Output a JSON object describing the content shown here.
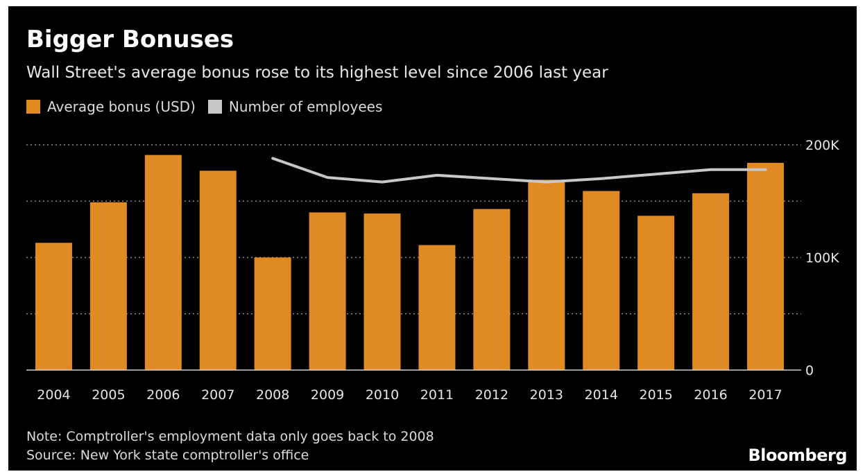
{
  "header": {
    "title": "Bigger Bonuses",
    "subtitle": "Wall Street's average bonus rose to its highest level since 2006 last year"
  },
  "legend": {
    "items": [
      {
        "label": "Average bonus (USD)",
        "color": "#e08a23"
      },
      {
        "label": "Number of employees",
        "color": "#c8c8c8"
      }
    ]
  },
  "footer": {
    "note": "Note: Comptroller's employment data only goes back to 2008",
    "source": "Source: New York state comptroller's office",
    "brand": "Bloomberg"
  },
  "chart_data": {
    "type": "bar",
    "categories": [
      "2004",
      "2005",
      "2006",
      "2007",
      "2008",
      "2009",
      "2010",
      "2011",
      "2012",
      "2013",
      "2014",
      "2015",
      "2016",
      "2017"
    ],
    "series": [
      {
        "name": "Average bonus (USD)",
        "type": "bar",
        "color": "#e08a23",
        "values": [
          113000,
          149000,
          191000,
          177000,
          100000,
          140000,
          139000,
          111000,
          143000,
          169000,
          159000,
          137000,
          157000,
          184000
        ]
      },
      {
        "name": "Number of employees",
        "type": "line",
        "color": "#c8c8c8",
        "values": [
          null,
          null,
          null,
          null,
          188000,
          171000,
          167000,
          173000,
          170000,
          167000,
          170000,
          174000,
          178000,
          178000
        ]
      }
    ],
    "ylim": [
      0,
      200000
    ],
    "yticks": [
      0,
      100000,
      200000
    ],
    "ytick_labels": [
      "0",
      "100K",
      "200K"
    ],
    "gridlines": [
      50000,
      100000,
      150000,
      200000
    ],
    "grid": true,
    "legend_position": "top-left"
  }
}
